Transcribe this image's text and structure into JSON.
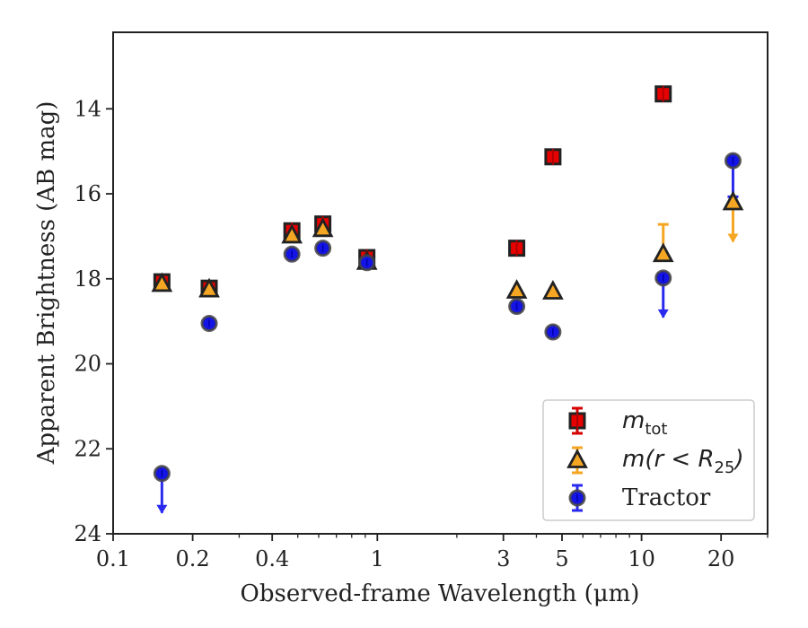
{
  "chart_data": {
    "type": "scatter",
    "xscale": "log",
    "yscale": "linear",
    "y_inverted": true,
    "xlim": [
      0.1,
      30
    ],
    "ylim": [
      24,
      12.2
    ],
    "xlabel": "Observed-frame Wavelength (μm)",
    "ylabel": "Apparent Brightness (AB mag)",
    "xticks": [
      {
        "value": 0.1,
        "label": "0.1"
      },
      {
        "value": 0.2,
        "label": "0.2"
      },
      {
        "value": 0.4,
        "label": "0.4"
      },
      {
        "value": 1,
        "label": "1"
      },
      {
        "value": 3,
        "label": "3"
      },
      {
        "value": 5,
        "label": "5"
      },
      {
        "value": 10,
        "label": "10"
      },
      {
        "value": 20,
        "label": "20"
      }
    ],
    "xminor": [
      0.3,
      0.5,
      0.6,
      0.7,
      0.8,
      0.9,
      2,
      4,
      6,
      7,
      8,
      9,
      30
    ],
    "yticks": [
      {
        "value": 14,
        "label": "14"
      },
      {
        "value": 16,
        "label": "16"
      },
      {
        "value": 18,
        "label": "18"
      },
      {
        "value": 20,
        "label": "20"
      },
      {
        "value": 22,
        "label": "22"
      },
      {
        "value": 24,
        "label": "24"
      }
    ],
    "grid": false,
    "legend_position": "lower-right",
    "series": [
      {
        "name": "m_tot",
        "marker": "square",
        "color": "#e60000",
        "edge_color": "#222222",
        "points": [
          {
            "x": 0.153,
            "y": 18.07
          },
          {
            "x": 0.231,
            "y": 18.22
          },
          {
            "x": 0.475,
            "y": 16.87
          },
          {
            "x": 0.622,
            "y": 16.71
          },
          {
            "x": 0.913,
            "y": 17.5
          },
          {
            "x": 3.37,
            "y": 17.28
          },
          {
            "x": 4.62,
            "y": 15.13
          },
          {
            "x": 12.08,
            "y": 13.65
          }
        ]
      },
      {
        "name": "m(r < R_25)",
        "marker": "triangle",
        "color": "#f5a623",
        "edge_color": "#222222",
        "points": [
          {
            "x": 0.153,
            "y": 18.12
          },
          {
            "x": 0.231,
            "y": 18.25
          },
          {
            "x": 0.475,
            "y": 16.98
          },
          {
            "x": 0.622,
            "y": 16.83
          },
          {
            "x": 0.913,
            "y": 17.6
          },
          {
            "x": 3.37,
            "y": 18.28
          },
          {
            "x": 4.62,
            "y": 18.3
          },
          {
            "x": 12.08,
            "y": 17.42,
            "err_up": 0.7
          },
          {
            "x": 22.19,
            "y": 16.2,
            "upper_limit": true
          }
        ]
      },
      {
        "name": "Tractor",
        "marker": "circle",
        "color": "#1414e6",
        "edge_color": "#444444",
        "points": [
          {
            "x": 0.153,
            "y": 22.58,
            "upper_limit": true
          },
          {
            "x": 0.231,
            "y": 19.05
          },
          {
            "x": 0.475,
            "y": 17.42
          },
          {
            "x": 0.622,
            "y": 17.28
          },
          {
            "x": 0.913,
            "y": 17.62
          },
          {
            "x": 3.37,
            "y": 18.65
          },
          {
            "x": 4.62,
            "y": 19.25
          },
          {
            "x": 12.08,
            "y": 17.98,
            "upper_limit": true
          },
          {
            "x": 22.19,
            "y": 15.22,
            "err_down": 0.85
          }
        ]
      }
    ]
  },
  "legend": {
    "items": [
      {
        "kind": "mtot",
        "base": "m",
        "sub": "tot"
      },
      {
        "kind": "mr25",
        "base": "m",
        "mid": "(r < R",
        "sub": "25",
        "tail": ")"
      },
      {
        "kind": "tractor",
        "text": "Tractor"
      }
    ]
  }
}
